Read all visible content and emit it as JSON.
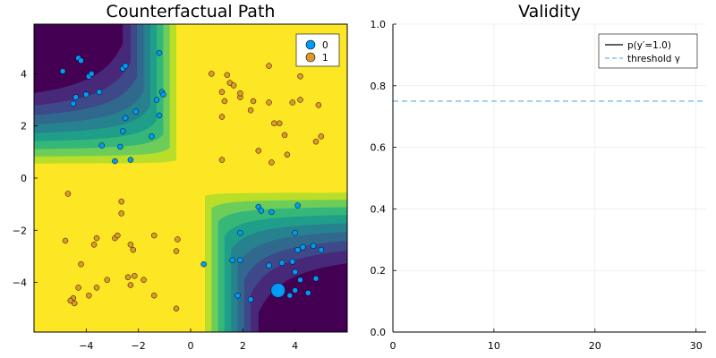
{
  "colors": {
    "class0": "#009af9",
    "class1": "#e0982a",
    "field_low": "#440154",
    "field_high": "#fde725",
    "prob_line": "#000000",
    "threshold": "#6fb6e6"
  },
  "chart_data": [
    {
      "type": "scatter",
      "title": "Counterfactual Path",
      "xlabel": "",
      "ylabel": "",
      "xlim": [
        -6.0,
        6.0
      ],
      "ylim": [
        -5.9,
        5.9
      ],
      "xticks": [
        -4,
        -2,
        0,
        2,
        4
      ],
      "yticks": [
        -4,
        -2,
        0,
        2,
        4
      ],
      "grid": false,
      "background": "filled contour of classifier probability (purple = class 0, yellow = class 1)",
      "legend": {
        "position": "top-right",
        "entries": [
          "0",
          "1"
        ]
      },
      "series": [
        {
          "name": "0",
          "points": [
            [
              -4.9,
              4.1
            ],
            [
              -4.3,
              4.6
            ],
            [
              -4.2,
              4.5
            ],
            [
              -3.9,
              3.9
            ],
            [
              -3.8,
              4.0
            ],
            [
              -4.0,
              3.2
            ],
            [
              -3.5,
              3.3
            ],
            [
              -2.6,
              4.2
            ],
            [
              -2.5,
              4.3
            ],
            [
              -4.4,
              3.1
            ],
            [
              -4.5,
              2.85
            ],
            [
              -1.2,
              4.8
            ],
            [
              -1.1,
              3.3
            ],
            [
              -1.05,
              3.2
            ],
            [
              -2.5,
              2.3
            ],
            [
              -2.1,
              2.55
            ],
            [
              -1.3,
              3.0
            ],
            [
              -1.2,
              2.4
            ],
            [
              -2.6,
              1.8
            ],
            [
              -2.7,
              1.2
            ],
            [
              -3.4,
              1.25
            ],
            [
              -1.5,
              1.6
            ],
            [
              -2.3,
              0.7
            ],
            [
              -2.9,
              0.65
            ],
            [
              2.6,
              -1.1
            ],
            [
              2.7,
              -1.25
            ],
            [
              3.1,
              -1.3
            ],
            [
              4.1,
              -1.05
            ],
            [
              1.9,
              -2.1
            ],
            [
              4.0,
              -2.1
            ],
            [
              4.3,
              -2.65
            ],
            [
              4.1,
              -2.75
            ],
            [
              4.7,
              -2.6
            ],
            [
              5.0,
              -2.75
            ],
            [
              0.5,
              -3.3
            ],
            [
              1.6,
              -3.15
            ],
            [
              1.9,
              -3.15
            ],
            [
              3.0,
              -3.35
            ],
            [
              3.5,
              -3.25
            ],
            [
              4.0,
              -3.6
            ],
            [
              3.9,
              -3.2
            ],
            [
              4.2,
              -3.9
            ],
            [
              4.8,
              -3.85
            ],
            [
              4.0,
              -4.3
            ],
            [
              4.5,
              -4.4
            ],
            [
              3.8,
              -4.5
            ],
            [
              1.8,
              -4.5
            ],
            [
              2.3,
              -4.65
            ]
          ],
          "counterfactual_start": [
            3.35,
            -4.3
          ]
        },
        {
          "name": "1",
          "points": [
            [
              0.8,
              4.0
            ],
            [
              1.4,
              3.95
            ],
            [
              1.5,
              3.65
            ],
            [
              1.65,
              3.55
            ],
            [
              1.2,
              3.3
            ],
            [
              1.9,
              3.1
            ],
            [
              1.9,
              3.25
            ],
            [
              1.3,
              2.95
            ],
            [
              2.4,
              2.95
            ],
            [
              2.3,
              2.6
            ],
            [
              1.2,
              2.35
            ],
            [
              3.0,
              4.3
            ],
            [
              3.0,
              2.9
            ],
            [
              3.9,
              2.9
            ],
            [
              4.2,
              3.0
            ],
            [
              4.2,
              3.9
            ],
            [
              3.2,
              2.1
            ],
            [
              3.4,
              2.1
            ],
            [
              3.6,
              1.65
            ],
            [
              4.9,
              2.8
            ],
            [
              5.0,
              1.6
            ],
            [
              4.8,
              1.4
            ],
            [
              2.6,
              1.05
            ],
            [
              3.1,
              0.6
            ],
            [
              3.7,
              0.9
            ],
            [
              1.2,
              0.7
            ],
            [
              -4.7,
              -0.6
            ],
            [
              -4.8,
              -2.4
            ],
            [
              -3.6,
              -2.3
            ],
            [
              -3.7,
              -2.55
            ],
            [
              -2.9,
              -2.3
            ],
            [
              -2.8,
              -2.2
            ],
            [
              -2.65,
              -0.9
            ],
            [
              -2.65,
              -1.35
            ],
            [
              -2.3,
              -2.55
            ],
            [
              -2.2,
              -2.75
            ],
            [
              -1.4,
              -2.2
            ],
            [
              -0.5,
              -2.35
            ],
            [
              -0.55,
              -2.8
            ],
            [
              -4.2,
              -3.3
            ],
            [
              -3.2,
              -3.9
            ],
            [
              -3.6,
              -4.2
            ],
            [
              -2.4,
              -3.8
            ],
            [
              -2.15,
              -3.75
            ],
            [
              -1.8,
              -3.9
            ],
            [
              -2.3,
              -4.1
            ],
            [
              -4.3,
              -4.2
            ],
            [
              -4.5,
              -4.6
            ],
            [
              -4.6,
              -4.7
            ],
            [
              -4.45,
              -4.8
            ],
            [
              -3.9,
              -4.5
            ],
            [
              -1.4,
              -4.5
            ],
            [
              -0.55,
              -5.0
            ]
          ]
        }
      ]
    },
    {
      "type": "line",
      "title": "Validity",
      "xlabel": "",
      "ylabel": "",
      "xlim": [
        0,
        31
      ],
      "ylim": [
        0.0,
        1.0
      ],
      "xticks": [
        0,
        10,
        20,
        30
      ],
      "yticks": [
        0.0,
        0.2,
        0.4,
        0.6,
        0.8,
        1.0
      ],
      "grid": true,
      "legend": {
        "position": "top-right",
        "entries": [
          "p(y′=1.0)",
          "threshold γ"
        ]
      },
      "series": [
        {
          "name": "p(y′=1.0)",
          "style": "solid",
          "x": [],
          "y": []
        },
        {
          "name": "threshold γ",
          "style": "dashed",
          "y_constant": 0.75
        }
      ]
    }
  ]
}
